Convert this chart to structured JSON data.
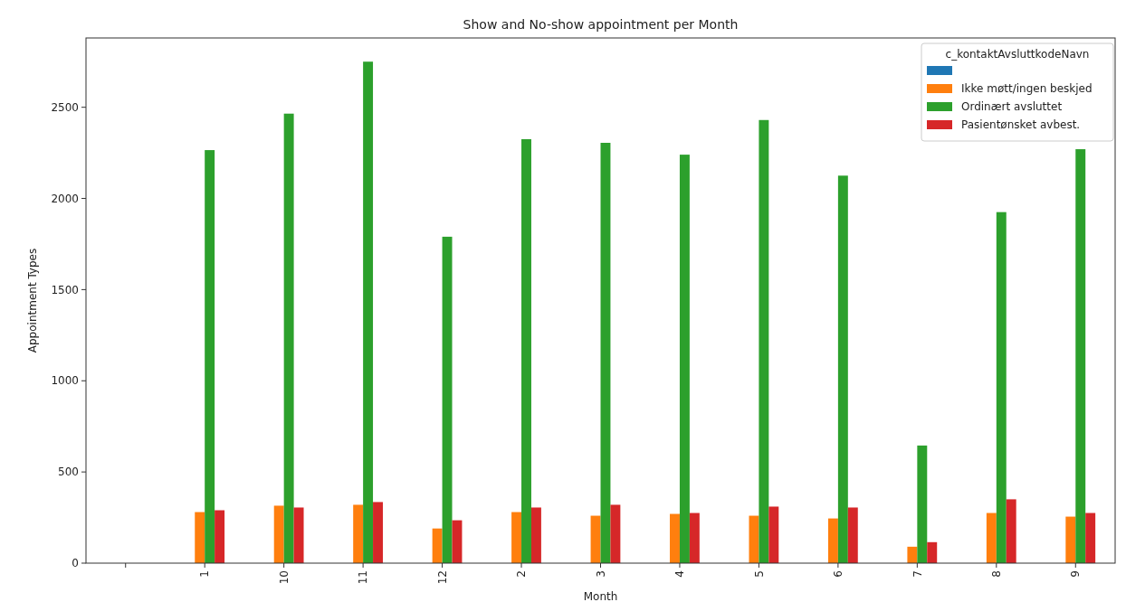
{
  "chart_data": {
    "type": "bar",
    "title": "Show and No-show appointment per Month",
    "xlabel": "Month",
    "ylabel": "Appointment Types",
    "legend_title": "c_kontaktAvsluttkodeNavn",
    "legend": "top right",
    "grid": false,
    "categories": [
      null,
      "1",
      "10",
      "11",
      "12",
      "2",
      "3",
      "4",
      "5",
      "6",
      "7",
      "8",
      "9"
    ],
    "ylim": [
      0,
      2880
    ],
    "yticks": [
      0,
      500,
      1000,
      1500,
      2000,
      2500
    ],
    "series": [
      {
        "color": "#1f77b4",
        "values": [
          null,
          null,
          null,
          null,
          null,
          null,
          null,
          null,
          null,
          null,
          null,
          null,
          null
        ]
      },
      {
        "name": "Ikke møtt/ingen beskjed",
        "color": "#ff7f0e",
        "values": [
          null,
          280,
          315,
          320,
          190,
          280,
          260,
          270,
          260,
          245,
          90,
          275,
          255
        ]
      },
      {
        "name": "Ordinært avsluttet",
        "color": "#2ca02c",
        "values": [
          null,
          2265,
          2465,
          2750,
          1790,
          2325,
          2305,
          2240,
          2430,
          2125,
          645,
          1925,
          2270
        ]
      },
      {
        "name": "Pasientønsket avbest.",
        "color": "#d62728",
        "values": [
          null,
          290,
          305,
          335,
          235,
          305,
          320,
          275,
          310,
          305,
          115,
          350,
          275
        ]
      }
    ]
  }
}
